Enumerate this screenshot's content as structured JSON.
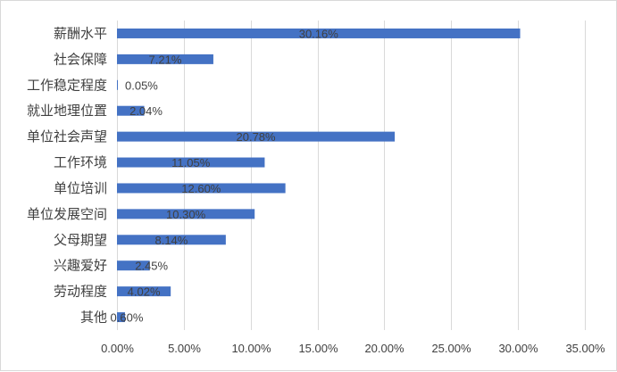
{
  "chart_data": {
    "type": "bar",
    "orientation": "horizontal",
    "categories": [
      "薪酬水平",
      "社会保障",
      "工作稳定程度",
      "就业地理位置",
      "单位社会声望",
      "工作环境",
      "单位培训",
      "单位发展空间",
      "父母期望",
      "兴趣爱好",
      "劳动程度",
      "其他"
    ],
    "values": [
      30.16,
      7.21,
      0.05,
      2.04,
      20.78,
      11.05,
      12.6,
      10.3,
      8.14,
      2.45,
      4.02,
      0.6
    ],
    "value_labels": [
      "30.16%",
      "7.21%",
      "0.05%",
      "2.04%",
      "20.78%",
      "11.05%",
      "12.60%",
      "10.30%",
      "8.14%",
      "2.45%",
      "4.02%",
      "0.60%"
    ],
    "x_ticks": [
      "0.00%",
      "5.00%",
      "10.00%",
      "15.00%",
      "20.00%",
      "25.00%",
      "30.00%",
      "35.00%"
    ],
    "xlim": [
      0,
      35
    ],
    "grid": true,
    "bar_color": "#4472c4",
    "grid_color": "#d9d9d9",
    "title": "",
    "xlabel": "",
    "ylabel": ""
  }
}
